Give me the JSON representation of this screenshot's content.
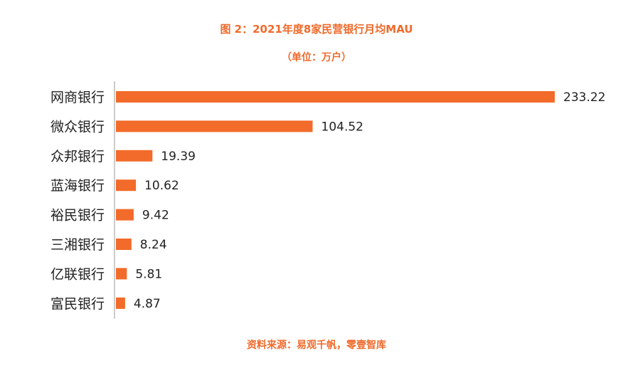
{
  "chart_data": {
    "type": "bar",
    "orientation": "horizontal",
    "title": "图 2：2021年度8家民营银行月均MAU",
    "subtitle": "（单位：万户）",
    "source": "资料来源：易观千帆，零壹智库",
    "categories": [
      "网商银行",
      "微众银行",
      "众邦银行",
      "蓝海银行",
      "裕民银行",
      "三湘银行",
      "亿联银行",
      "富民银行"
    ],
    "values": [
      233.22,
      104.52,
      19.39,
      10.62,
      9.42,
      8.24,
      5.81,
      4.87
    ],
    "value_labels": [
      "233.22",
      "104.52",
      "19.39",
      "10.62",
      "9.42",
      "8.24",
      "5.81",
      "4.87"
    ],
    "xlim": [
      0,
      233.22
    ],
    "grid": false,
    "legend": "none",
    "bar_color": "#f26b2a",
    "axis_color": "#999999"
  }
}
